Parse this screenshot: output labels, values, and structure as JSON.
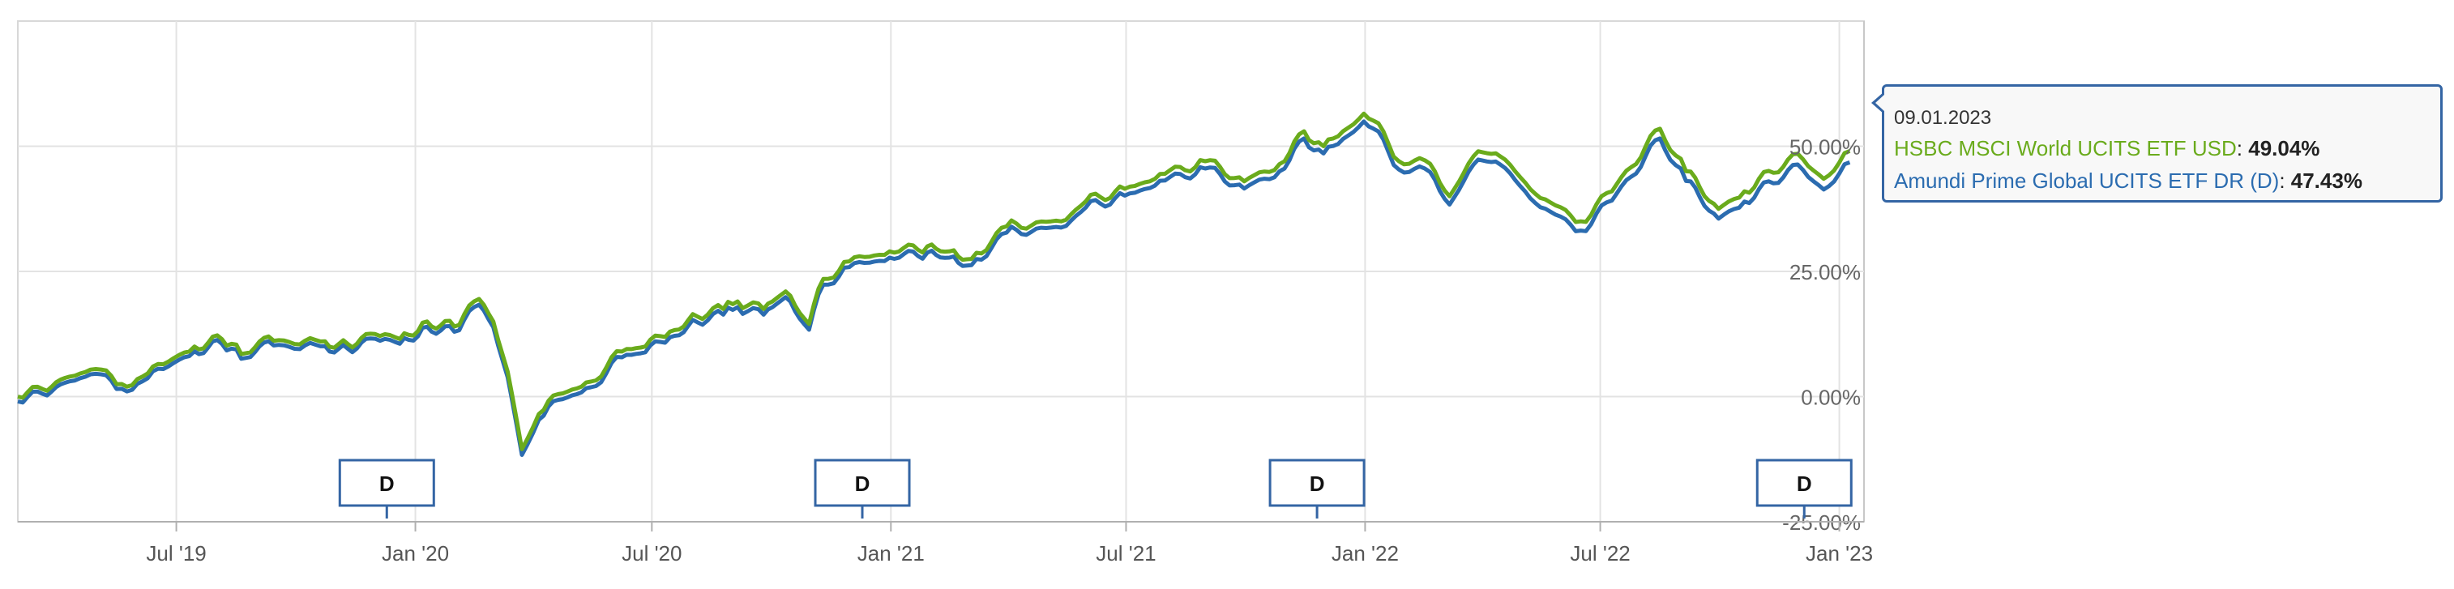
{
  "chart_data": {
    "type": "line",
    "xlim": [
      "2019-03-01",
      "2023-01-20"
    ],
    "ylim": [
      -25,
      75
    ],
    "x_ticks": [
      {
        "date": "2019-07-01",
        "label": "Jul '19"
      },
      {
        "date": "2020-01-01",
        "label": "Jan '20"
      },
      {
        "date": "2020-07-01",
        "label": "Jul '20"
      },
      {
        "date": "2021-01-01",
        "label": "Jan '21"
      },
      {
        "date": "2021-07-01",
        "label": "Jul '21"
      },
      {
        "date": "2022-01-01",
        "label": "Jan '22"
      },
      {
        "date": "2022-07-01",
        "label": "Jul '22"
      },
      {
        "date": "2023-01-01",
        "label": "Jan '23"
      }
    ],
    "y_ticks": [
      {
        "value": -25,
        "label": "-25.00%"
      },
      {
        "value": 0,
        "label": "0.00%"
      },
      {
        "value": 25,
        "label": "25.00%"
      },
      {
        "value": 50,
        "label": "50.00%"
      }
    ],
    "grid": true,
    "legend": "none",
    "dividend_markers": [
      {
        "date": "2019-12-10",
        "label": "D"
      },
      {
        "date": "2020-12-10",
        "label": "D"
      },
      {
        "date": "2021-11-25",
        "label": "D"
      },
      {
        "date": "2022-12-05",
        "label": "D"
      }
    ],
    "series": [
      {
        "name": "HSBC MSCI World UCITS ETF USD",
        "color": "#6aab1c",
        "points": [
          [
            "2019-03-01",
            0.0
          ],
          [
            "2019-03-20",
            1.5
          ],
          [
            "2019-04-10",
            4.0
          ],
          [
            "2019-04-30",
            5.5
          ],
          [
            "2019-05-20",
            2.5
          ],
          [
            "2019-06-05",
            4.0
          ],
          [
            "2019-06-25",
            7.0
          ],
          [
            "2019-07-15",
            10.0
          ],
          [
            "2019-08-05",
            11.5
          ],
          [
            "2019-08-20",
            8.5
          ],
          [
            "2019-09-10",
            12.0
          ],
          [
            "2019-09-30",
            10.5
          ],
          [
            "2019-10-20",
            11.0
          ],
          [
            "2019-11-10",
            10.5
          ],
          [
            "2019-12-01",
            12.5
          ],
          [
            "2019-12-20",
            11.5
          ],
          [
            "2020-01-10",
            15.0
          ],
          [
            "2020-01-31",
            14.0
          ],
          [
            "2020-02-19",
            19.5
          ],
          [
            "2020-03-01",
            15.0
          ],
          [
            "2020-03-12",
            5.0
          ],
          [
            "2020-03-23",
            -10.5
          ],
          [
            "2020-04-05",
            -3.5
          ],
          [
            "2020-04-20",
            0.5
          ],
          [
            "2020-05-15",
            3.0
          ],
          [
            "2020-06-08",
            9.0
          ],
          [
            "2020-06-26",
            10.0
          ],
          [
            "2020-07-15",
            13.0
          ],
          [
            "2020-08-05",
            16.0
          ],
          [
            "2020-08-25",
            17.5
          ],
          [
            "2020-09-05",
            19.0
          ],
          [
            "2020-09-25",
            17.5
          ],
          [
            "2020-10-12",
            21.0
          ],
          [
            "2020-10-30",
            14.5
          ],
          [
            "2020-11-10",
            23.5
          ],
          [
            "2020-11-30",
            27.0
          ],
          [
            "2020-12-31",
            29.0
          ],
          [
            "2021-01-29",
            30.0
          ],
          [
            "2021-02-15",
            29.0
          ],
          [
            "2021-03-04",
            27.5
          ],
          [
            "2021-03-31",
            34.0
          ],
          [
            "2021-05-12",
            35.0
          ],
          [
            "2021-05-31",
            39.0
          ],
          [
            "2021-06-30",
            41.5
          ],
          [
            "2021-07-31",
            44.5
          ],
          [
            "2021-08-31",
            47.0
          ],
          [
            "2021-09-30",
            43.0
          ],
          [
            "2021-10-31",
            47.0
          ],
          [
            "2021-11-15",
            53.0
          ],
          [
            "2021-11-30",
            50.0
          ],
          [
            "2021-12-15",
            53.0
          ],
          [
            "2021-12-31",
            56.5
          ],
          [
            "2022-01-15",
            53.0
          ],
          [
            "2022-01-27",
            47.0
          ],
          [
            "2022-02-20",
            46.5
          ],
          [
            "2022-03-07",
            40.0
          ],
          [
            "2022-03-29",
            49.0
          ],
          [
            "2022-04-15",
            48.0
          ],
          [
            "2022-05-12",
            40.5
          ],
          [
            "2022-06-16",
            35.0
          ],
          [
            "2022-07-10",
            41.0
          ],
          [
            "2022-08-16",
            53.5
          ],
          [
            "2022-09-05",
            45.0
          ],
          [
            "2022-09-30",
            37.5
          ],
          [
            "2022-10-20",
            41.0
          ],
          [
            "2022-11-30",
            48.5
          ],
          [
            "2022-12-20",
            43.5
          ],
          [
            "2023-01-09",
            49.04
          ]
        ]
      },
      {
        "name": "Amundi Prime Global UCITS ETF DR (D)",
        "color": "#2b6cb0",
        "points": [
          [
            "2019-03-01",
            -0.3
          ],
          [
            "2019-03-20",
            1.2
          ],
          [
            "2019-04-10",
            3.7
          ],
          [
            "2019-04-30",
            5.2
          ],
          [
            "2019-05-20",
            2.2
          ],
          [
            "2019-06-05",
            3.7
          ],
          [
            "2019-06-25",
            6.7
          ],
          [
            "2019-07-15",
            9.7
          ],
          [
            "2019-08-05",
            11.2
          ],
          [
            "2019-08-20",
            8.2
          ],
          [
            "2019-09-10",
            11.7
          ],
          [
            "2019-09-30",
            10.2
          ],
          [
            "2019-10-20",
            10.7
          ],
          [
            "2019-11-10",
            10.2
          ],
          [
            "2019-12-01",
            12.2
          ],
          [
            "2019-12-20",
            11.2
          ],
          [
            "2020-01-10",
            14.6
          ],
          [
            "2020-01-31",
            13.6
          ],
          [
            "2020-02-19",
            19.0
          ],
          [
            "2020-03-01",
            14.5
          ],
          [
            "2020-03-12",
            4.5
          ],
          [
            "2020-03-23",
            -11.0
          ],
          [
            "2020-04-05",
            -4.0
          ],
          [
            "2020-04-20",
            0.0
          ],
          [
            "2020-05-15",
            2.5
          ],
          [
            "2020-06-08",
            8.5
          ],
          [
            "2020-06-26",
            9.5
          ],
          [
            "2020-07-15",
            12.5
          ],
          [
            "2020-08-05",
            15.5
          ],
          [
            "2020-08-25",
            17.0
          ],
          [
            "2020-09-05",
            18.5
          ],
          [
            "2020-09-25",
            17.0
          ],
          [
            "2020-10-12",
            20.5
          ],
          [
            "2020-10-30",
            14.0
          ],
          [
            "2020-11-10",
            23.0
          ],
          [
            "2020-11-30",
            26.5
          ],
          [
            "2020-12-31",
            28.4
          ],
          [
            "2021-01-29",
            29.4
          ],
          [
            "2021-02-15",
            28.4
          ],
          [
            "2021-03-04",
            26.9
          ],
          [
            "2021-03-31",
            33.4
          ],
          [
            "2021-05-12",
            34.4
          ],
          [
            "2021-05-31",
            38.4
          ],
          [
            "2021-06-30",
            40.8
          ],
          [
            "2021-07-31",
            43.8
          ],
          [
            "2021-08-31",
            46.2
          ],
          [
            "2021-09-30",
            42.2
          ],
          [
            "2021-10-31",
            46.2
          ],
          [
            "2021-11-15",
            52.2
          ],
          [
            "2021-11-30",
            49.2
          ],
          [
            "2021-12-15",
            52.1
          ],
          [
            "2021-12-31",
            55.6
          ],
          [
            "2022-01-15",
            52.0
          ],
          [
            "2022-01-27",
            46.0
          ],
          [
            "2022-02-20",
            45.5
          ],
          [
            "2022-03-07",
            39.0
          ],
          [
            "2022-03-29",
            48.0
          ],
          [
            "2022-04-15",
            47.0
          ],
          [
            "2022-05-12",
            39.3
          ],
          [
            "2022-06-16",
            33.8
          ],
          [
            "2022-07-10",
            39.8
          ],
          [
            "2022-08-16",
            52.2
          ],
          [
            "2022-09-05",
            43.7
          ],
          [
            "2022-09-30",
            36.2
          ],
          [
            "2022-10-20",
            39.6
          ],
          [
            "2022-11-30",
            47.0
          ],
          [
            "2022-12-20",
            42.0
          ],
          [
            "2023-01-09",
            47.43
          ]
        ]
      }
    ]
  },
  "tooltip": {
    "date": "09.01.2023",
    "rows": [
      {
        "name": "HSBC MSCI World UCITS ETF USD",
        "value": "49.04%",
        "color": "#6aab1c"
      },
      {
        "name": "Amundi Prime Global UCITS ETF DR (D)",
        "value": "47.43%",
        "color": "#2b6cb0"
      }
    ]
  }
}
